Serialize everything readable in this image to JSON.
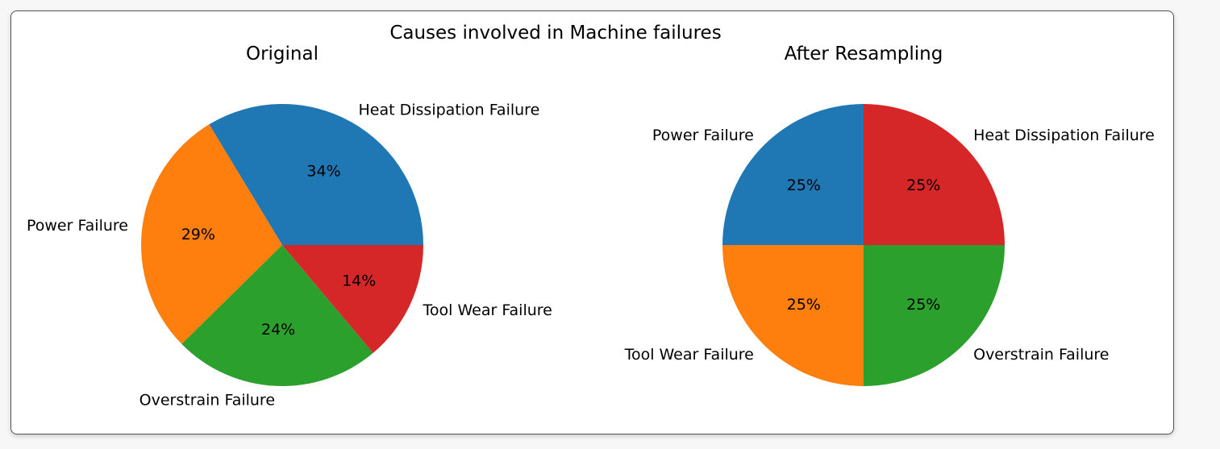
{
  "chart_data": {
    "type": "pie",
    "title": "Causes involved in Machine failures",
    "subplots": [
      {
        "title": "Original",
        "labels": [
          "Heat Dissipation Failure",
          "Power Failure",
          "Overstrain Failure",
          "Tool Wear Failure"
        ],
        "values": [
          34,
          29,
          24,
          14
        ],
        "pct_labels": [
          "34%",
          "29%",
          "24%",
          "14%"
        ],
        "colors": [
          "#1f77b4",
          "#ff7f0e",
          "#2ca02c",
          "#d62728"
        ]
      },
      {
        "title": "After Resampling",
        "labels": [
          "Power Failure",
          "Tool Wear Failure",
          "Overstrain Failure",
          "Heat Dissipation Failure"
        ],
        "values": [
          25,
          25,
          25,
          25
        ],
        "pct_labels": [
          "25%",
          "25%",
          "25%",
          "25%"
        ],
        "colors": [
          "#1f77b4",
          "#ff7f0e",
          "#2ca02c",
          "#d62728"
        ]
      }
    ]
  }
}
